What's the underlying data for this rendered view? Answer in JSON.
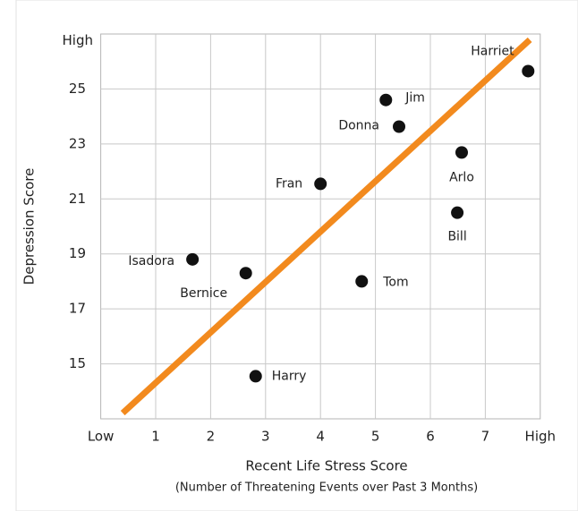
{
  "chart_data": {
    "type": "scatter",
    "xlabel": "Recent Life Stress Score",
    "xsublabel": "(Number of Threatening Events over Past 3 Months)",
    "ylabel": "Depression Score",
    "xlim": [
      0,
      8
    ],
    "xticks": [
      {
        "value": 0,
        "label": "Low"
      },
      1,
      2,
      3,
      4,
      5,
      6,
      7,
      {
        "value": 8,
        "label": "High"
      }
    ],
    "ylim": [
      13,
      27
    ],
    "yticks": [
      15,
      17,
      19,
      21,
      23,
      25,
      {
        "value": 26.75,
        "label": "High"
      }
    ],
    "grid": true,
    "points": {
      "color": "#111111",
      "labels": [
        "Harriet",
        "Jim",
        "Donna",
        "Arlo",
        "Bill",
        "Fran",
        "Tom",
        "Isadora",
        "Bernice",
        "Harry"
      ],
      "x": [
        7.78,
        5.19,
        5.43,
        6.57,
        6.49,
        4.0,
        4.75,
        1.67,
        2.64,
        2.82
      ],
      "y": [
        25.65,
        24.6,
        23.63,
        22.69,
        20.5,
        21.55,
        18.0,
        18.8,
        18.3,
        14.55
      ]
    },
    "trend_line": {
      "color": "#f28a1e",
      "x": [
        0.4,
        7.81
      ],
      "y": [
        13.21,
        26.79
      ]
    }
  }
}
